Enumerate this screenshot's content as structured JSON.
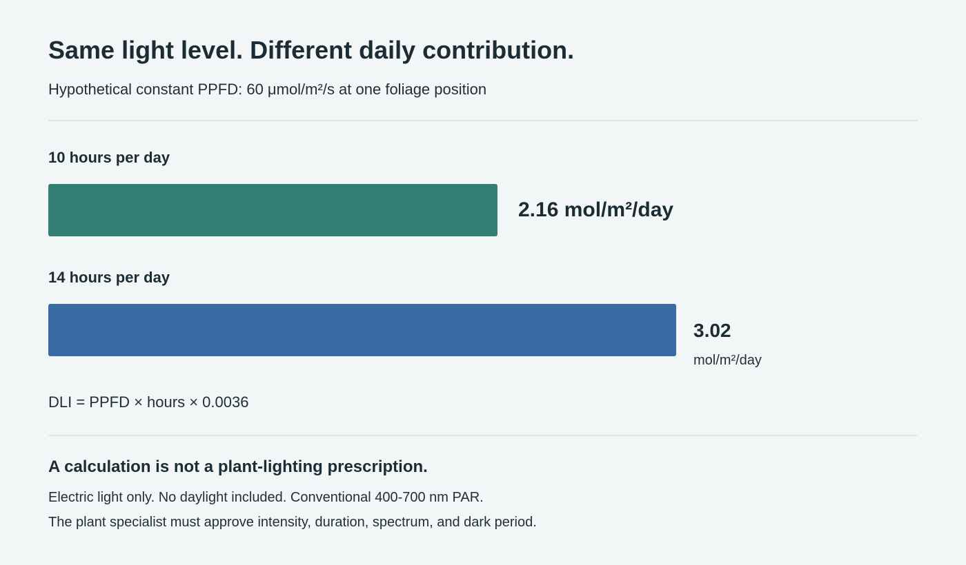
{
  "header": {
    "title": "Same light level. Different daily contribution.",
    "subtitle": "Hypothetical constant PPFD: 60 μmol/m²/s at one foliage position"
  },
  "chart_data": {
    "type": "bar",
    "orientation": "horizontal",
    "categories": [
      "10 hours per day",
      "14 hours per day"
    ],
    "values": [
      2.16,
      3.02
    ],
    "value_labels": [
      "2.16 mol/m²/day",
      "3.02"
    ],
    "unit_label": "mol/m²/day",
    "bar_colors": [
      "#347f74",
      "#386ca3"
    ]
  },
  "formula": "DLI = PPFD × hours × 0.0036",
  "note": {
    "heading": "A calculation is not a plant-lighting prescription.",
    "lines": [
      "Electric light only. No daylight included. Conventional 400-700 nm PAR.",
      "The plant specialist must approve intensity, duration, spectrum, and dark period."
    ]
  }
}
